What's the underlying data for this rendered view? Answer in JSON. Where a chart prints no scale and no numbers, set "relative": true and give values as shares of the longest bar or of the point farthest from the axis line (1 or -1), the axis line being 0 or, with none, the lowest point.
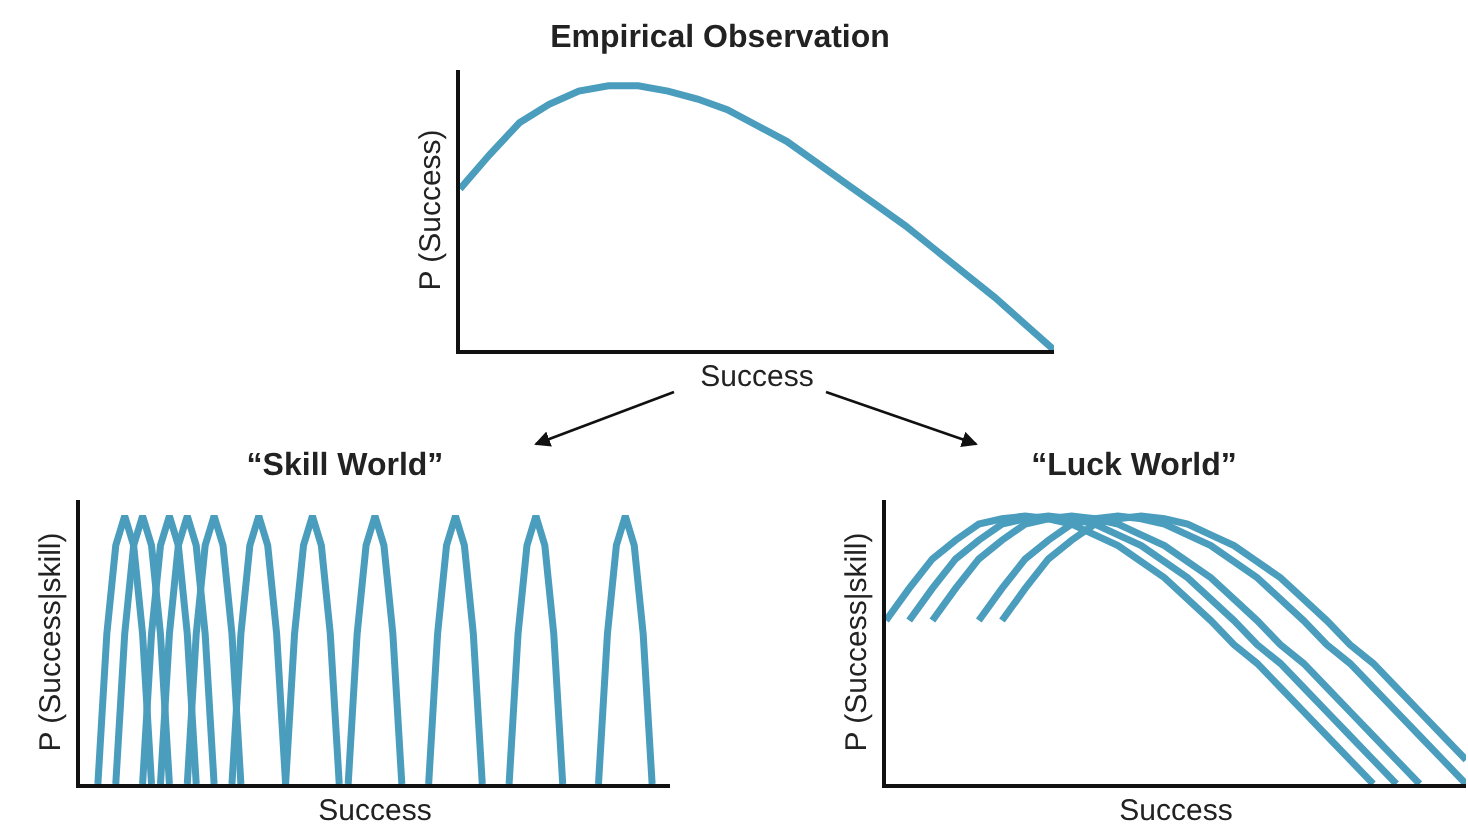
{
  "chart_data": [
    {
      "type": "line",
      "title": "Empirical Observation",
      "xlabel": "Success",
      "ylabel": "P (Success)",
      "relative": true,
      "categories": [
        null,
        null,
        null,
        null,
        null,
        null,
        null,
        null,
        null,
        null,
        null,
        null,
        null,
        null,
        null,
        null,
        null,
        null,
        null,
        null,
        null
      ],
      "series": [
        {
          "color": "#4a9dbd",
          "values": [
            0.61,
            0.74,
            0.86,
            0.93,
            0.98,
            1,
            1,
            0.98,
            0.95,
            0.91,
            0.85,
            0.79,
            0.71,
            0.63,
            0.55,
            0.47,
            0.38,
            0.29,
            0.2,
            0.1,
            0
          ]
        }
      ]
    },
    {
      "type": "line",
      "title": "“Skill World”",
      "xlabel": "Success",
      "ylabel": "P (Success|skill)",
      "relative": true,
      "categories": [
        null,
        null,
        null,
        null,
        null,
        null,
        null,
        null,
        null,
        null,
        null,
        null,
        null,
        null,
        null,
        null,
        null,
        null,
        null,
        null,
        null,
        null,
        null,
        null,
        null,
        null,
        null,
        null,
        null,
        null,
        null,
        null,
        null,
        null,
        null,
        null,
        null,
        null,
        null,
        null,
        null,
        null,
        null,
        null,
        null,
        null,
        null,
        null,
        null,
        null,
        null,
        null,
        null,
        null,
        null,
        null,
        null,
        null,
        null,
        null,
        null,
        null,
        null,
        null,
        null,
        null,
        null
      ],
      "series": [
        {
          "color": "#4a9dbd",
          "values": [
            null,
            null,
            0,
            0.56,
            0.89,
            1,
            0.89,
            0.56,
            0,
            null,
            null,
            null,
            null,
            null,
            null,
            null,
            null,
            null,
            null,
            null,
            null,
            null,
            null,
            null,
            null,
            null,
            null,
            null,
            null,
            null,
            null,
            null,
            null,
            null,
            null,
            null,
            null,
            null,
            null,
            null,
            null,
            null,
            null,
            null,
            null,
            null,
            null,
            null,
            null,
            null,
            null,
            null,
            null,
            null,
            null,
            null,
            null,
            null,
            null,
            null,
            null,
            null,
            null,
            null,
            null,
            null,
            null
          ]
        },
        {
          "color": "#4a9dbd",
          "values": [
            null,
            null,
            null,
            null,
            0,
            0.56,
            0.89,
            1,
            0.89,
            0.56,
            0,
            null,
            null,
            null,
            null,
            null,
            null,
            null,
            null,
            null,
            null,
            null,
            null,
            null,
            null,
            null,
            null,
            null,
            null,
            null,
            null,
            null,
            null,
            null,
            null,
            null,
            null,
            null,
            null,
            null,
            null,
            null,
            null,
            null,
            null,
            null,
            null,
            null,
            null,
            null,
            null,
            null,
            null,
            null,
            null,
            null,
            null,
            null,
            null,
            null,
            null,
            null,
            null,
            null,
            null,
            null,
            null
          ]
        },
        {
          "color": "#4a9dbd",
          "values": [
            null,
            null,
            null,
            null,
            null,
            null,
            null,
            0,
            0.56,
            0.89,
            1,
            0.89,
            0.56,
            0,
            null,
            null,
            null,
            null,
            null,
            null,
            null,
            null,
            null,
            null,
            null,
            null,
            null,
            null,
            null,
            null,
            null,
            null,
            null,
            null,
            null,
            null,
            null,
            null,
            null,
            null,
            null,
            null,
            null,
            null,
            null,
            null,
            null,
            null,
            null,
            null,
            null,
            null,
            null,
            null,
            null,
            null,
            null,
            null,
            null,
            null,
            null,
            null,
            null,
            null,
            null,
            null,
            null
          ]
        },
        {
          "color": "#4a9dbd",
          "values": [
            null,
            null,
            null,
            null,
            null,
            null,
            null,
            null,
            null,
            0,
            0.56,
            0.89,
            1,
            0.89,
            0.56,
            0,
            null,
            null,
            null,
            null,
            null,
            null,
            null,
            null,
            null,
            null,
            null,
            null,
            null,
            null,
            null,
            null,
            null,
            null,
            null,
            null,
            null,
            null,
            null,
            null,
            null,
            null,
            null,
            null,
            null,
            null,
            null,
            null,
            null,
            null,
            null,
            null,
            null,
            null,
            null,
            null,
            null,
            null,
            null,
            null,
            null,
            null,
            null,
            null,
            null,
            null,
            null
          ]
        },
        {
          "color": "#4a9dbd",
          "values": [
            null,
            null,
            null,
            null,
            null,
            null,
            null,
            null,
            null,
            null,
            null,
            null,
            0,
            0.56,
            0.89,
            1,
            0.89,
            0.56,
            0,
            null,
            null,
            null,
            null,
            null,
            null,
            null,
            null,
            null,
            null,
            null,
            null,
            null,
            null,
            null,
            null,
            null,
            null,
            null,
            null,
            null,
            null,
            null,
            null,
            null,
            null,
            null,
            null,
            null,
            null,
            null,
            null,
            null,
            null,
            null,
            null,
            null,
            null,
            null,
            null,
            null,
            null,
            null,
            null,
            null,
            null,
            null,
            null
          ]
        },
        {
          "color": "#4a9dbd",
          "values": [
            null,
            null,
            null,
            null,
            null,
            null,
            null,
            null,
            null,
            null,
            null,
            null,
            null,
            null,
            null,
            null,
            null,
            0,
            0.56,
            0.89,
            1,
            0.89,
            0.56,
            0,
            null,
            null,
            null,
            null,
            null,
            null,
            null,
            null,
            null,
            null,
            null,
            null,
            null,
            null,
            null,
            null,
            null,
            null,
            null,
            null,
            null,
            null,
            null,
            null,
            null,
            null,
            null,
            null,
            null,
            null,
            null,
            null,
            null,
            null,
            null,
            null,
            null,
            null,
            null,
            null,
            null,
            null,
            null
          ]
        },
        {
          "color": "#4a9dbd",
          "values": [
            null,
            null,
            null,
            null,
            null,
            null,
            null,
            null,
            null,
            null,
            null,
            null,
            null,
            null,
            null,
            null,
            null,
            null,
            null,
            null,
            null,
            null,
            null,
            0,
            0.56,
            0.89,
            1,
            0.89,
            0.56,
            0,
            null,
            null,
            null,
            null,
            null,
            null,
            null,
            null,
            null,
            null,
            null,
            null,
            null,
            null,
            null,
            null,
            null,
            null,
            null,
            null,
            null,
            null,
            null,
            null,
            null,
            null,
            null,
            null,
            null,
            null,
            null,
            null,
            null,
            null,
            null,
            null,
            null
          ]
        },
        {
          "color": "#4a9dbd",
          "values": [
            null,
            null,
            null,
            null,
            null,
            null,
            null,
            null,
            null,
            null,
            null,
            null,
            null,
            null,
            null,
            null,
            null,
            null,
            null,
            null,
            null,
            null,
            null,
            null,
            null,
            null,
            null,
            null,
            null,
            null,
            0,
            0.56,
            0.89,
            1,
            0.89,
            0.56,
            0,
            null,
            null,
            null,
            null,
            null,
            null,
            null,
            null,
            null,
            null,
            null,
            null,
            null,
            null,
            null,
            null,
            null,
            null,
            null,
            null,
            null,
            null,
            null,
            null,
            null,
            null,
            null,
            null,
            null,
            null
          ]
        },
        {
          "color": "#4a9dbd",
          "values": [
            null,
            null,
            null,
            null,
            null,
            null,
            null,
            null,
            null,
            null,
            null,
            null,
            null,
            null,
            null,
            null,
            null,
            null,
            null,
            null,
            null,
            null,
            null,
            null,
            null,
            null,
            null,
            null,
            null,
            null,
            null,
            null,
            null,
            null,
            null,
            null,
            null,
            null,
            null,
            0,
            0.56,
            0.89,
            1,
            0.89,
            0.56,
            0,
            null,
            null,
            null,
            null,
            null,
            null,
            null,
            null,
            null,
            null,
            null,
            null,
            null,
            null,
            null,
            null,
            null,
            null,
            null,
            null,
            null
          ]
        },
        {
          "color": "#4a9dbd",
          "values": [
            null,
            null,
            null,
            null,
            null,
            null,
            null,
            null,
            null,
            null,
            null,
            null,
            null,
            null,
            null,
            null,
            null,
            null,
            null,
            null,
            null,
            null,
            null,
            null,
            null,
            null,
            null,
            null,
            null,
            null,
            null,
            null,
            null,
            null,
            null,
            null,
            null,
            null,
            null,
            null,
            null,
            null,
            null,
            null,
            null,
            null,
            null,
            null,
            0,
            0.56,
            0.89,
            1,
            0.89,
            0.56,
            0,
            null,
            null,
            null,
            null,
            null,
            null,
            null,
            null,
            null,
            null,
            null,
            null
          ]
        },
        {
          "color": "#4a9dbd",
          "values": [
            null,
            null,
            null,
            null,
            null,
            null,
            null,
            null,
            null,
            null,
            null,
            null,
            null,
            null,
            null,
            null,
            null,
            null,
            null,
            null,
            null,
            null,
            null,
            null,
            null,
            null,
            null,
            null,
            null,
            null,
            null,
            null,
            null,
            null,
            null,
            null,
            null,
            null,
            null,
            null,
            null,
            null,
            null,
            null,
            null,
            null,
            null,
            null,
            null,
            null,
            null,
            null,
            null,
            null,
            null,
            null,
            null,
            null,
            0,
            0.56,
            0.89,
            1,
            0.89,
            0.56,
            0,
            null,
            null
          ]
        }
      ]
    },
    {
      "type": "line",
      "title": "“Luck World”",
      "xlabel": "Success",
      "ylabel": "P (Success|skill)",
      "relative": true,
      "categories": [
        null,
        null,
        null,
        null,
        null,
        null,
        null,
        null,
        null,
        null,
        null,
        null,
        null,
        null,
        null,
        null,
        null,
        null,
        null,
        null,
        null,
        null,
        null,
        null,
        null,
        null
      ],
      "series": [
        {
          "color": "#4a9dbd",
          "values": [
            0.61,
            0.73,
            0.84,
            0.91,
            0.97,
            0.99,
            1,
            0.99,
            0.97,
            0.93,
            0.89,
            0.83,
            0.77,
            0.69,
            0.61,
            0.52,
            0.45,
            0.36,
            0.27,
            0.18,
            0.09,
            0,
            null,
            null,
            null,
            null
          ]
        },
        {
          "color": "#4a9dbd",
          "values": [
            null,
            0.61,
            0.73,
            0.84,
            0.91,
            0.97,
            0.99,
            1,
            0.99,
            0.97,
            0.93,
            0.89,
            0.83,
            0.77,
            0.69,
            0.61,
            0.52,
            0.45,
            0.36,
            0.27,
            0.18,
            0.09,
            0,
            null,
            null,
            null
          ]
        },
        {
          "color": "#4a9dbd",
          "values": [
            null,
            null,
            0.61,
            0.73,
            0.84,
            0.91,
            0.97,
            0.99,
            1,
            0.99,
            0.97,
            0.93,
            0.89,
            0.83,
            0.77,
            0.69,
            0.61,
            0.52,
            0.45,
            0.36,
            0.27,
            0.18,
            0.09,
            0,
            null,
            null
          ]
        },
        {
          "color": "#4a9dbd",
          "values": [
            null,
            null,
            null,
            null,
            0.61,
            0.73,
            0.84,
            0.91,
            0.97,
            0.99,
            1,
            0.99,
            0.97,
            0.93,
            0.89,
            0.83,
            0.77,
            0.69,
            0.61,
            0.52,
            0.45,
            0.36,
            0.27,
            0.18,
            0.09,
            0
          ]
        },
        {
          "color": "#4a9dbd",
          "values": [
            null,
            null,
            null,
            null,
            null,
            0.61,
            0.73,
            0.84,
            0.91,
            0.97,
            0.99,
            1,
            0.99,
            0.97,
            0.93,
            0.89,
            0.83,
            0.77,
            0.69,
            0.61,
            0.52,
            0.45,
            0.36,
            0.27,
            0.18,
            0.09
          ]
        }
      ]
    }
  ]
}
